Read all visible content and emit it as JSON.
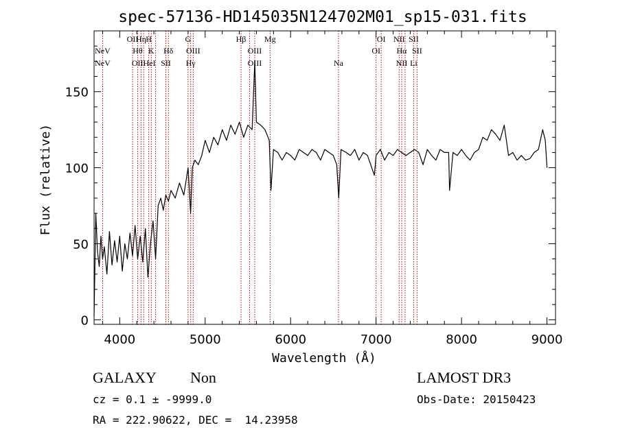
{
  "chart_data": {
    "type": "line",
    "title": "spec-57136-HD145035N124702M01_sp15-031.fits",
    "xlabel": "Wavelength (Å)",
    "ylabel": "Flux (relative)",
    "xlim": [
      3700,
      9100
    ],
    "ylim": [
      -3,
      190
    ],
    "xticks": [
      4000,
      5000,
      6000,
      7000,
      8000,
      9000
    ],
    "yticks": [
      0,
      50,
      100,
      150
    ],
    "series": [
      {
        "x": [
          3700,
          3720,
          3740,
          3760,
          3780,
          3800,
          3820,
          3850,
          3880,
          3910,
          3940,
          3970,
          4000,
          4030,
          4060,
          4090,
          4120,
          4150,
          4180,
          4210,
          4240,
          4270,
          4300,
          4330,
          4360,
          4390,
          4420,
          4450,
          4480,
          4510,
          4540,
          4570,
          4600,
          4650,
          4700,
          4750,
          4800,
          4830,
          4850,
          4880,
          4920,
          4960,
          5000,
          5050,
          5100,
          5150,
          5200,
          5250,
          5300,
          5350,
          5400,
          5450,
          5500,
          5550,
          5580,
          5600,
          5650,
          5700,
          5750,
          5770,
          5800,
          5850,
          5900,
          5950,
          6000,
          6050,
          6100,
          6150,
          6200,
          6250,
          6300,
          6350,
          6400,
          6450,
          6500,
          6540,
          6563,
          6590,
          6650,
          6700,
          6750,
          6800,
          6850,
          6900,
          6950,
          6980,
          7000,
          7050,
          7100,
          7150,
          7200,
          7250,
          7300,
          7350,
          7400,
          7450,
          7500,
          7550,
          7600,
          7650,
          7700,
          7750,
          7800,
          7850,
          7860,
          7900,
          7950,
          8000,
          8050,
          8100,
          8150,
          8200,
          8250,
          8300,
          8350,
          8400,
          8450,
          8500,
          8550,
          8600,
          8650,
          8700,
          8750,
          8800,
          8850,
          8900,
          8950,
          8980,
          9000
        ],
        "y": [
          2,
          70,
          45,
          35,
          55,
          40,
          48,
          30,
          58,
          36,
          52,
          38,
          55,
          32,
          50,
          40,
          57,
          42,
          62,
          40,
          55,
          38,
          60,
          28,
          50,
          65,
          40,
          75,
          80,
          72,
          82,
          78,
          85,
          80,
          90,
          82,
          100,
          70,
          100,
          105,
          102,
          108,
          118,
          110,
          120,
          115,
          125,
          118,
          128,
          122,
          130,
          120,
          128,
          125,
          170,
          130,
          128,
          125,
          118,
          85,
          112,
          110,
          105,
          110,
          108,
          105,
          112,
          110,
          108,
          112,
          110,
          105,
          112,
          110,
          108,
          102,
          80,
          112,
          110,
          108,
          112,
          105,
          110,
          108,
          100,
          95,
          108,
          112,
          105,
          110,
          108,
          112,
          110,
          108,
          110,
          112,
          110,
          102,
          112,
          108,
          105,
          112,
          110,
          110,
          85,
          110,
          108,
          112,
          108,
          105,
          110,
          112,
          120,
          118,
          125,
          122,
          118,
          128,
          108,
          110,
          105,
          108,
          105,
          106,
          110,
          112,
          125,
          118,
          100
        ]
      }
    ],
    "lines": [
      {
        "wl": 3800,
        "labels": [
          {
            "text": "NeV",
            "row": 1
          },
          {
            "text": "NeV",
            "row": 2
          }
        ]
      },
      {
        "wl": 4150,
        "labels": [
          {
            "text": "OII",
            "row": 0
          }
        ]
      },
      {
        "wl": 4210,
        "labels": [
          {
            "text": "Hθ",
            "row": 1
          }
        ]
      },
      {
        "wl": 4250,
        "labels": [
          {
            "text": "Hη",
            "row": 0
          }
        ]
      },
      {
        "wl": 4280,
        "labels": [
          {
            "text": "OIIHeI",
            "row": 2
          }
        ]
      },
      {
        "wl": 4340,
        "labels": [
          {
            "text": "H",
            "row": 0
          }
        ]
      },
      {
        "wl": 4370,
        "labels": [
          {
            "text": "K",
            "row": 1
          }
        ]
      },
      {
        "wl": 4420,
        "labels": []
      },
      {
        "wl": 4540,
        "labels": [
          {
            "text": "SII",
            "row": 2
          }
        ]
      },
      {
        "wl": 4570,
        "labels": [
          {
            "text": "Hδ",
            "row": 1
          }
        ]
      },
      {
        "wl": 4800,
        "labels": [
          {
            "text": "G",
            "row": 0
          }
        ]
      },
      {
        "wl": 4830,
        "labels": [
          {
            "text": "Hγ",
            "row": 2
          }
        ]
      },
      {
        "wl": 4860,
        "labels": [
          {
            "text": "OIII",
            "row": 1
          }
        ]
      },
      {
        "wl": 5420,
        "labels": [
          {
            "text": "Hβ",
            "row": 0
          }
        ]
      },
      {
        "wl": 5520,
        "labels": []
      },
      {
        "wl": 5580,
        "labels": [
          {
            "text": "OIII",
            "row": 1
          },
          {
            "text": "OIII",
            "row": 2
          }
        ]
      },
      {
        "wl": 5760,
        "labels": [
          {
            "text": "Mg",
            "row": 0
          }
        ]
      },
      {
        "wl": 6560,
        "labels": [
          {
            "text": "Na",
            "row": 2
          }
        ]
      },
      {
        "wl": 7000,
        "labels": [
          {
            "text": "OI",
            "row": 1
          }
        ]
      },
      {
        "wl": 7060,
        "labels": [
          {
            "text": "OI",
            "row": 0
          }
        ]
      },
      {
        "wl": 7270,
        "labels": [
          {
            "text": "NII",
            "row": 0
          }
        ]
      },
      {
        "wl": 7300,
        "labels": [
          {
            "text": "Hα",
            "row": 1
          },
          {
            "text": "NII",
            "row": 2
          }
        ]
      },
      {
        "wl": 7340,
        "labels": []
      },
      {
        "wl": 7440,
        "labels": [
          {
            "text": "SII",
            "row": 0
          },
          {
            "text": "Li",
            "row": 2
          }
        ]
      },
      {
        "wl": 7480,
        "labels": [
          {
            "text": "SII",
            "row": 1
          }
        ]
      }
    ]
  },
  "info": {
    "class": "GALAXY",
    "subclass": "Non",
    "survey": "LAMOST DR3",
    "cz_line": "cz = 0.1 ± -9999.0",
    "obs_date": "Obs-Date: 20150423",
    "coords": "RA = 222.90622, DEC =  14.23958"
  },
  "colors": {
    "line_marker": "#c00000",
    "spectrum": "#000000"
  }
}
